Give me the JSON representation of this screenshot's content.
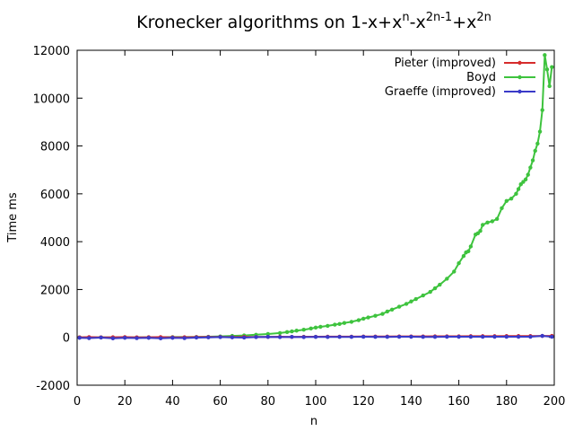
{
  "chart_data": {
    "type": "line",
    "title": {
      "prefix": "Kronecker algorithms on 1-x+x",
      "sup1": "n",
      "mid1": "-x",
      "sup2": "2n-1",
      "mid2": "+x",
      "sup3": "2n"
    },
    "xlabel": "n",
    "ylabel": "Time ms",
    "xlim": [
      0,
      200
    ],
    "ylim": [
      -2000,
      12000
    ],
    "xticks": [
      0,
      20,
      40,
      60,
      80,
      100,
      120,
      140,
      160,
      180,
      200
    ],
    "yticks": [
      -2000,
      0,
      2000,
      4000,
      6000,
      8000,
      10000,
      12000
    ],
    "grid": false,
    "legend_position": "top-right",
    "series": [
      {
        "name": "Pieter (improved)",
        "color": "#d62c2c",
        "x": [
          1,
          5,
          10,
          15,
          20,
          25,
          30,
          35,
          40,
          45,
          50,
          55,
          60,
          65,
          70,
          75,
          80,
          85,
          90,
          95,
          100,
          105,
          110,
          115,
          120,
          125,
          130,
          135,
          140,
          145,
          150,
          155,
          160,
          165,
          170,
          175,
          180,
          185,
          190,
          195,
          199
        ],
        "y": [
          0,
          10,
          0,
          5,
          10,
          0,
          5,
          10,
          0,
          5,
          10,
          15,
          20,
          10,
          20,
          15,
          20,
          25,
          20,
          25,
          25,
          30,
          30,
          30,
          35,
          35,
          35,
          40,
          40,
          40,
          45,
          45,
          45,
          50,
          50,
          50,
          55,
          55,
          55,
          60,
          60
        ]
      },
      {
        "name": "Boyd",
        "color": "#3ec33e",
        "x": [
          1,
          10,
          20,
          30,
          40,
          50,
          55,
          60,
          65,
          70,
          75,
          80,
          85,
          88,
          90,
          92,
          95,
          98,
          100,
          102,
          105,
          108,
          110,
          112,
          115,
          118,
          120,
          122,
          125,
          128,
          130,
          132,
          135,
          138,
          140,
          142,
          145,
          148,
          150,
          152,
          155,
          158,
          160,
          162,
          163,
          164,
          165,
          167,
          168,
          169,
          170,
          172,
          174,
          176,
          178,
          180,
          182,
          184,
          185,
          186,
          187,
          188,
          189,
          190,
          191,
          192,
          193,
          194,
          195,
          196,
          197,
          198,
          199
        ],
        "y": [
          0,
          0,
          0,
          5,
          10,
          15,
          25,
          40,
          60,
          80,
          110,
          140,
          180,
          220,
          250,
          280,
          320,
          370,
          410,
          440,
          480,
          530,
          560,
          600,
          650,
          720,
          780,
          830,
          900,
          980,
          1080,
          1160,
          1280,
          1400,
          1500,
          1600,
          1750,
          1900,
          2050,
          2200,
          2450,
          2750,
          3100,
          3400,
          3550,
          3600,
          3800,
          4300,
          4350,
          4450,
          4700,
          4800,
          4850,
          4950,
          5400,
          5700,
          5800,
          6000,
          6200,
          6400,
          6500,
          6600,
          6800,
          7100,
          7400,
          7800,
          8100,
          8600,
          9500,
          11800,
          11200,
          10500,
          11300
        ]
      },
      {
        "name": "Graeffe (improved)",
        "color": "#3a3ac8",
        "x": [
          1,
          5,
          10,
          15,
          20,
          25,
          30,
          35,
          40,
          45,
          50,
          55,
          60,
          65,
          70,
          75,
          80,
          85,
          90,
          95,
          100,
          105,
          110,
          115,
          120,
          125,
          130,
          135,
          140,
          145,
          150,
          155,
          160,
          165,
          170,
          175,
          180,
          185,
          190,
          195,
          199
        ],
        "y": [
          -20,
          -30,
          -10,
          -40,
          -20,
          -30,
          -20,
          -40,
          -20,
          -30,
          -10,
          0,
          10,
          0,
          -10,
          10,
          20,
          10,
          20,
          10,
          20,
          15,
          20,
          20,
          25,
          20,
          20,
          25,
          25,
          20,
          20,
          25,
          25,
          25,
          25,
          25,
          25,
          25,
          25,
          60,
          25
        ]
      }
    ]
  }
}
